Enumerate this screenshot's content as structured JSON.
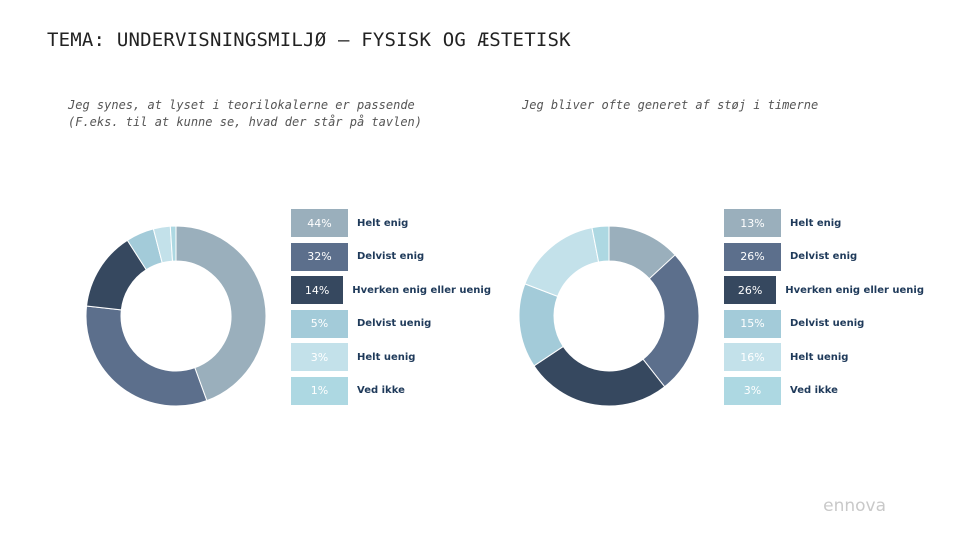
{
  "header": {
    "title": "TEMA: UNDERVISNINGSMILJØ – FYSISK OG ÆSTETISK"
  },
  "logo": {
    "text": "ennova"
  },
  "chart_data": [
    {
      "type": "pie",
      "title": "Jeg synes, at lyset i teorilokalerne er passende (F.eks. til at kunne se, hvad der står på tavlen)",
      "categories": [
        "Helt enig",
        "Delvist enig",
        "Hverken enig eller uenig",
        "Delvist uenig",
        "Helt uenig",
        "Ved ikke"
      ],
      "values": [
        44,
        32,
        14,
        5,
        3,
        1
      ],
      "value_labels": [
        "44%",
        "32%",
        "14%",
        "5%",
        "3%",
        "1%"
      ],
      "colors": [
        "#9aafbc",
        "#5c6f8c",
        "#36485f",
        "#a3cbd9",
        "#c3e1ea",
        "#add8e2"
      ],
      "legend": "right"
    },
    {
      "type": "pie",
      "title": "Jeg bliver ofte generet af støj i timerne",
      "categories": [
        "Helt enig",
        "Delvist enig",
        "Hverken enig eller uenig",
        "Delvist uenig",
        "Helt uenig",
        "Ved ikke"
      ],
      "values": [
        13,
        26,
        26,
        15,
        16,
        3
      ],
      "value_labels": [
        "13%",
        "26%",
        "26%",
        "15%",
        "16%",
        "3%"
      ],
      "colors": [
        "#9aafbc",
        "#5c6f8c",
        "#36485f",
        "#a3cbd9",
        "#c3e1ea",
        "#add8e2"
      ],
      "legend": "right"
    }
  ]
}
